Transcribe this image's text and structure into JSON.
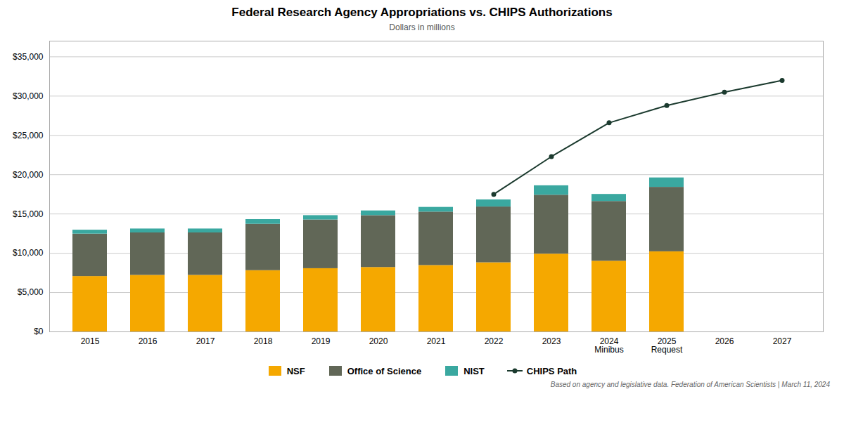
{
  "chart_data": {
    "type": "bar",
    "stacked": true,
    "title": "Federal Research Agency Appropriations vs. CHIPS Authorizations",
    "subtitle": "Dollars in millions",
    "footnote": "Based on agency and legislative data. Federation of American Scientists | March 11, 2024",
    "categories": [
      "2015",
      "2016",
      "2017",
      "2018",
      "2019",
      "2020",
      "2021",
      "2022",
      "2023",
      "2024\nMinibus",
      "2025\nRequest",
      "2026",
      "2027"
    ],
    "series": [
      {
        "name": "NSF",
        "color": "#F5A800",
        "values": [
          7050,
          7200,
          7200,
          7800,
          8050,
          8200,
          8450,
          8800,
          9900,
          9000,
          10200,
          null,
          null
        ]
      },
      {
        "name": "Office of Science",
        "color": "#616757",
        "values": [
          5400,
          5400,
          5400,
          5900,
          6200,
          6600,
          6800,
          7100,
          7500,
          7600,
          8200,
          null,
          null
        ]
      },
      {
        "name": "NIST",
        "color": "#3AA8A0",
        "values": [
          500,
          500,
          500,
          600,
          550,
          600,
          600,
          900,
          1200,
          900,
          1200,
          null,
          null
        ]
      },
      {
        "name": "CHIPS Path",
        "type": "line",
        "marker": "circle",
        "color": "#1B3A2E",
        "values": [
          null,
          null,
          null,
          null,
          null,
          null,
          null,
          17500,
          22300,
          26600,
          28800,
          30500,
          32000
        ]
      }
    ],
    "ylim": [
      0,
      37000
    ],
    "yticks": [
      {
        "value": 0,
        "label": "$0"
      },
      {
        "value": 5000,
        "label": "$5,000"
      },
      {
        "value": 10000,
        "label": "$10,000"
      },
      {
        "value": 15000,
        "label": "$15,000"
      },
      {
        "value": 20000,
        "label": "$20,000"
      },
      {
        "value": 25000,
        "label": "$25,000"
      },
      {
        "value": 30000,
        "label": "$30,000"
      },
      {
        "value": 35000,
        "label": "$35,000"
      }
    ],
    "grid": true,
    "legend": "bottom"
  }
}
